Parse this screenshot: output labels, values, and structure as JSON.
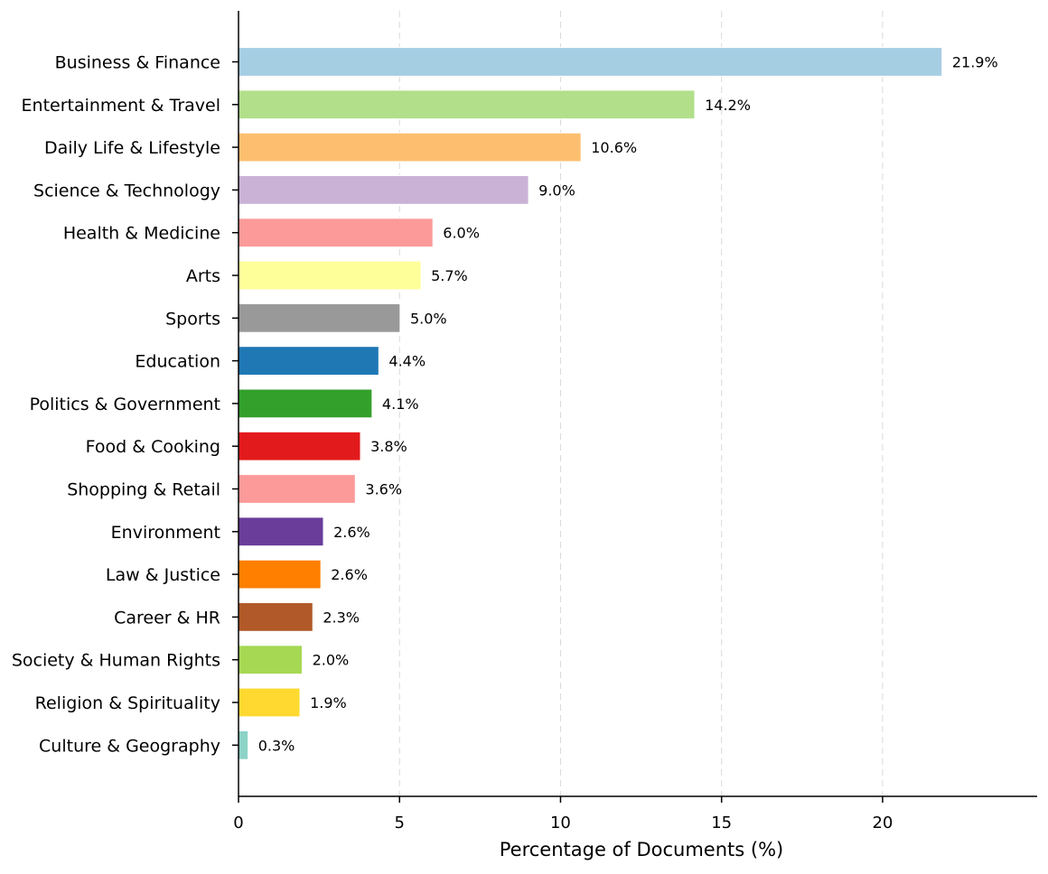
{
  "chart_data": {
    "type": "bar",
    "orientation": "horizontal",
    "title": "",
    "xlabel": "Percentage of Documents (%)",
    "ylabel": "",
    "xlim": [
      0,
      24.8
    ],
    "xticks": [
      0,
      5,
      10,
      15,
      20
    ],
    "grid": "x-dashed",
    "categories": [
      "Business & Finance",
      "Entertainment & Travel",
      "Daily Life & Lifestyle",
      "Science & Technology",
      "Health & Medicine",
      "Arts",
      "Sports",
      "Education",
      "Politics & Government",
      "Food & Cooking",
      "Shopping & Retail",
      "Environment",
      "Law & Justice",
      "Career & HR",
      "Society & Human Rights",
      "Religion & Spirituality",
      "Culture & Geography"
    ],
    "values": [
      21.85,
      14.17,
      10.64,
      9.01,
      6.04,
      5.67,
      5.02,
      4.36,
      4.15,
      3.79,
      3.63,
      2.64,
      2.56,
      2.31,
      1.98,
      1.91,
      0.3
    ],
    "value_labels": [
      "21.9%",
      "14.2%",
      "10.6%",
      "9.0%",
      "6.0%",
      "5.7%",
      "5.0%",
      "4.4%",
      "4.1%",
      "3.8%",
      "3.6%",
      "2.6%",
      "2.6%",
      "2.3%",
      "2.0%",
      "1.9%",
      "0.3%"
    ],
    "colors": [
      "#a6cee3",
      "#b2df8a",
      "#fdbf6f",
      "#cab2d6",
      "#fb9a99",
      "#ffff99",
      "#999999",
      "#1f78b4",
      "#33a02c",
      "#e31a1c",
      "#fb9a99",
      "#6a3d9a",
      "#ff7f00",
      "#b15928",
      "#a6d854",
      "#ffd92f",
      "#8dd3c7"
    ]
  }
}
